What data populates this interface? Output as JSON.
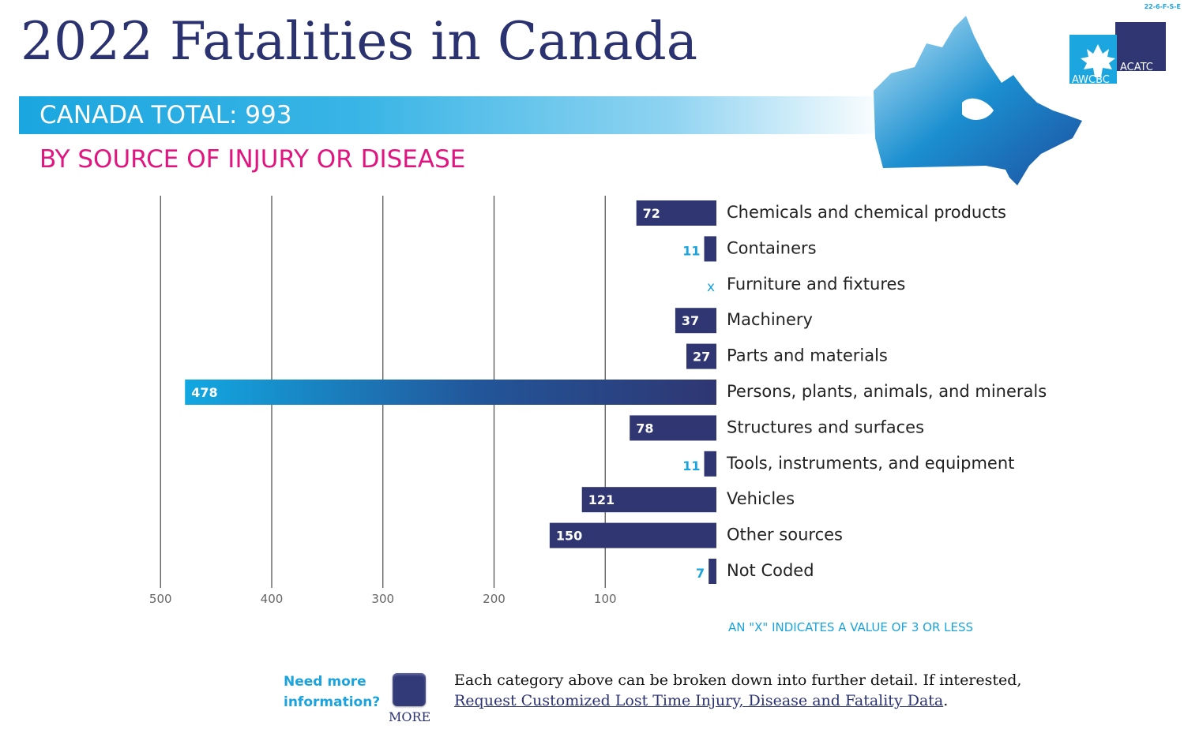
{
  "header": {
    "title": "2022 Fatalities in Canada",
    "code": "22-6-F-S-E",
    "total": "CANADA TOTAL: 993",
    "subtitle": "BY SOURCE OF INJURY OR DISEASE"
  },
  "logo": {
    "left": "AWCBC",
    "right": "ACATC"
  },
  "colors": {
    "navy": "#2b3270",
    "cyan": "#1aa3dd",
    "magenta": "#e0157f"
  },
  "chart_data": {
    "type": "bar",
    "orientation": "horizontal-leftward",
    "categories": [
      "Chemicals and chemical products",
      "Containers",
      "Furniture and fixtures",
      "Machinery",
      "Parts and materials",
      "Persons, plants, animals, and minerals",
      "Structures and surfaces",
      "Tools, instruments, and equipment",
      "Vehicles",
      "Other sources",
      "Not Coded"
    ],
    "values": [
      72,
      11,
      null,
      37,
      27,
      478,
      78,
      11,
      121,
      150,
      7
    ],
    "value_labels": [
      "72",
      "11",
      "x",
      "37",
      "27",
      "478",
      "78",
      "11",
      "121",
      "150",
      "7"
    ],
    "xlim": [
      0,
      500
    ],
    "ticks": [
      "500",
      "400",
      "300",
      "200",
      "100"
    ],
    "grid": true,
    "note": "AN \"X\" INDICATES A VALUE OF 3 OR LESS"
  },
  "footer": {
    "need_more": "Need more information?",
    "more_label": "MORE",
    "info_line1": "Each category above can be broken down into further detail. If interested,",
    "info_link": "Request Customized Lost Time Injury, Disease and Fatality Data",
    "info_end": "."
  }
}
